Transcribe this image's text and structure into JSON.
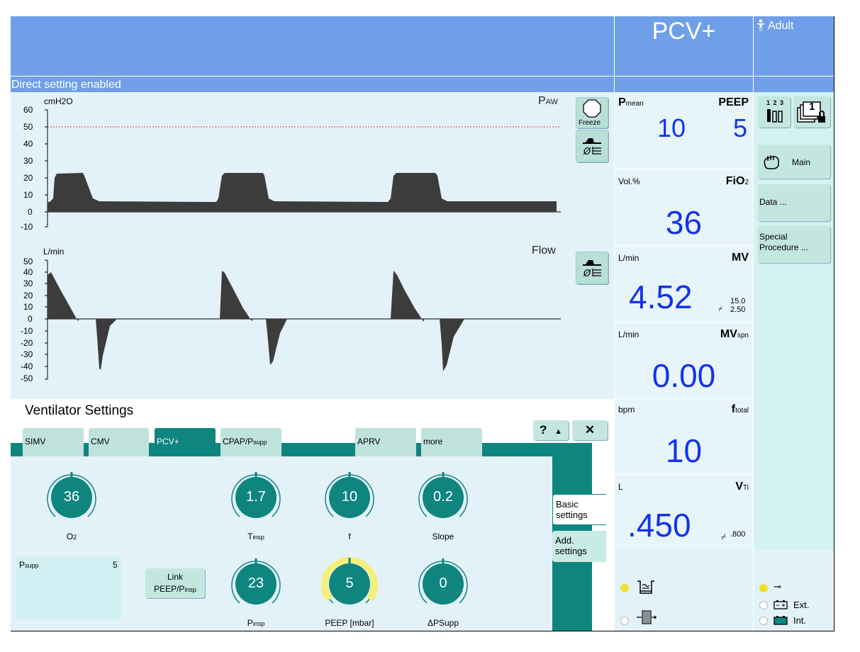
{
  "header": {
    "status_text": "Direct setting enabled",
    "mode": "PCV+",
    "patient": "Adult"
  },
  "waveforms": {
    "paw": {
      "unit": "cmH2O",
      "title": "P",
      "title_sub": "AW",
      "ticks": [
        "60",
        "50",
        "40",
        "30",
        "20",
        "10",
        "0",
        "-10"
      ],
      "alarm_limit": 50
    },
    "flow": {
      "unit": "L/min",
      "title": "Flow",
      "ticks": [
        "50",
        "40",
        "30",
        "20",
        "10",
        "0",
        "-10",
        "-20",
        "-30",
        "-40",
        "-50"
      ]
    },
    "freeze_label": "Freeze"
  },
  "values": {
    "pmean": {
      "name": "P",
      "name_sub": "mean",
      "value": "10"
    },
    "peep": {
      "name": "PEEP",
      "value": "5"
    },
    "fio2": {
      "label": "Vol.%",
      "name": "FiO",
      "name_sub": "2",
      "value": "36"
    },
    "mv": {
      "label": "L/min",
      "name": "MV",
      "value": "4.52",
      "upper": "15.0",
      "lower": "2.50"
    },
    "mvspn": {
      "label": "L/min",
      "name": "MV",
      "name_sub": "spn",
      "value": "0.00"
    },
    "ftotal": {
      "label": "bpm",
      "name": "f",
      "name_sub": "total",
      "value": "10"
    },
    "vti": {
      "label": "L",
      "name": "V",
      "name_sub": "Ti",
      "value": ".450",
      "limit": ".800"
    }
  },
  "menu": {
    "digits_icon": "1 2 3",
    "lock_digit": "1",
    "main": "Main",
    "data": "Data ...",
    "special": "Special Procedure ..."
  },
  "settings": {
    "title": "Ventilator Settings",
    "help": "?",
    "close": "✕",
    "tabs": [
      "SIMV",
      "CMV",
      "PCV+",
      "CPAP/P",
      "APRV",
      "more"
    ],
    "tab_sub": "supp",
    "subtabs": [
      "Basic settings",
      "Add. settings"
    ],
    "knobs": {
      "o2": {
        "value": "36",
        "label": "O",
        "label_sub": "2"
      },
      "tinsp": {
        "value": "1.7",
        "label": "T",
        "label_sub": "insp"
      },
      "f": {
        "value": "10",
        "label": "f"
      },
      "slope": {
        "value": "0.2",
        "label": "Slope"
      },
      "pinsp": {
        "value": "23",
        "label": "P",
        "label_sub": "insp"
      },
      "peep": {
        "value": "5",
        "label": "PEEP [mbar]"
      },
      "dpsupp": {
        "value": "0",
        "label": "ΔPSupp"
      }
    },
    "psupp": {
      "label": "P",
      "label_sub": "supp",
      "value": "5"
    },
    "link": {
      "line1": "Link",
      "line2": "PEEP/P",
      "line2_sub": "insp"
    }
  },
  "status": {
    "ext": "Ext.",
    "int": "Int."
  }
}
